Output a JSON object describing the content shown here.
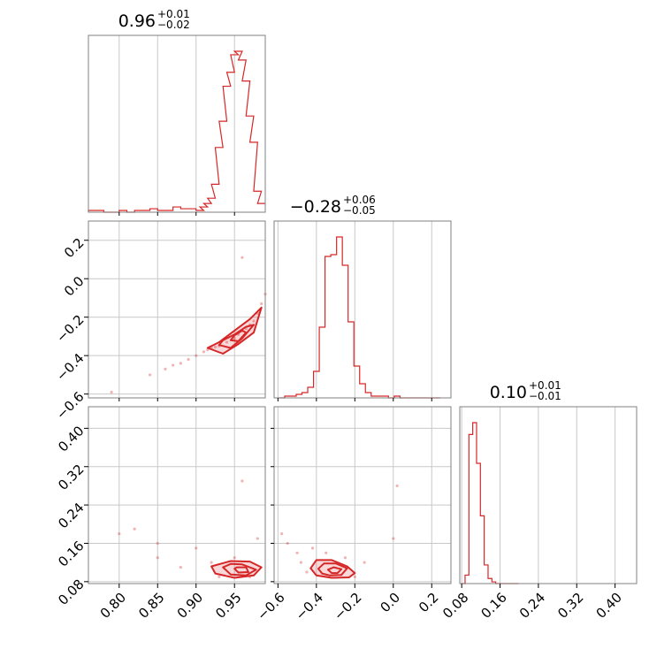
{
  "chart_data": {
    "type": "scatter",
    "subtype": "corner-plot",
    "color": "#d62728",
    "grid": true,
    "parameters": [
      {
        "title": {
          "value": "0.96",
          "plus": "+0.01",
          "minus": "−0.02"
        },
        "range": [
          0.76,
          0.99
        ],
        "ticks": [
          0.8,
          0.85,
          0.9,
          0.95
        ],
        "tick_labels": [
          "0.80",
          "0.85",
          "0.90",
          "0.95"
        ],
        "hist_x": [
          0.765,
          0.775,
          0.785,
          0.795,
          0.805,
          0.815,
          0.825,
          0.835,
          0.845,
          0.855,
          0.865,
          0.875,
          0.885,
          0.895,
          0.905,
          0.91,
          0.915,
          0.92,
          0.925,
          0.93,
          0.935,
          0.94,
          0.945,
          0.95,
          0.955,
          0.96,
          0.965,
          0.97,
          0.975,
          0.98,
          0.985
        ],
        "hist_y": [
          1,
          1,
          0,
          0,
          1,
          0,
          1,
          1,
          2,
          1,
          1,
          3,
          2,
          2,
          1,
          3,
          5,
          8,
          16,
          37,
          52,
          72,
          80,
          90,
          92,
          87,
          75,
          55,
          40,
          12,
          5
        ]
      },
      {
        "title": {
          "value": "−0.28",
          "plus": "+0.06",
          "minus": "−0.05"
        },
        "range": [
          -0.62,
          0.3
        ],
        "ticks": [
          -0.6,
          -0.4,
          -0.2,
          0.0,
          0.2
        ],
        "tick_labels": [
          "−0.6",
          "−0.4",
          "−0.2",
          "0.0",
          "0.2"
        ],
        "hist_x": [
          -0.58,
          -0.55,
          -0.52,
          -0.49,
          -0.46,
          -0.43,
          -0.4,
          -0.37,
          -0.34,
          -0.31,
          -0.28,
          -0.25,
          -0.22,
          -0.19,
          -0.16,
          -0.13,
          -0.1,
          -0.07,
          -0.04,
          -0.01,
          0.02,
          0.05,
          0.08,
          0.11,
          0.14,
          0.17,
          0.2,
          0.23
        ],
        "hist_y": [
          0,
          1,
          1,
          2,
          3,
          6,
          15,
          40,
          80,
          81,
          91,
          75,
          43,
          18,
          8,
          3,
          1,
          1,
          1,
          0,
          1,
          0,
          0,
          0,
          0,
          0,
          0,
          0
        ]
      },
      {
        "title": {
          "value": "0.10",
          "plus": "+0.01",
          "minus": "−0.01"
        },
        "range": [
          0.076,
          0.445
        ],
        "ticks": [
          0.08,
          0.16,
          0.24,
          0.32,
          0.4
        ],
        "tick_labels": [
          "0.08",
          "0.16",
          "0.24",
          "0.32",
          "0.40"
        ],
        "hist_x": [
          0.083,
          0.091,
          0.099,
          0.107,
          0.115,
          0.123,
          0.131,
          0.139,
          0.147,
          0.155,
          0.163,
          0.171,
          0.179,
          0.187,
          0.195
        ],
        "hist_y": [
          0,
          5,
          88,
          95,
          71,
          40,
          11,
          3,
          1,
          0,
          0,
          0,
          0,
          0,
          0
        ]
      }
    ],
    "pairs": [
      {
        "x_param": 0,
        "y_param": 1,
        "points": [
          [
            0.79,
            -0.59
          ],
          [
            0.84,
            -0.5
          ],
          [
            0.86,
            -0.47
          ],
          [
            0.87,
            -0.45
          ],
          [
            0.88,
            -0.44
          ],
          [
            0.89,
            -0.42
          ],
          [
            0.9,
            -0.4
          ],
          [
            0.91,
            -0.38
          ],
          [
            0.915,
            -0.37
          ],
          [
            0.92,
            -0.36
          ],
          [
            0.925,
            -0.355
          ],
          [
            0.93,
            -0.35
          ],
          [
            0.94,
            -0.33
          ],
          [
            0.95,
            -0.31
          ],
          [
            0.955,
            -0.29
          ],
          [
            0.96,
            -0.27
          ],
          [
            0.965,
            -0.26
          ],
          [
            0.97,
            -0.24
          ],
          [
            0.975,
            -0.22
          ],
          [
            0.98,
            -0.18
          ],
          [
            0.985,
            -0.13
          ],
          [
            0.99,
            -0.08
          ],
          [
            0.96,
            0.11
          ]
        ],
        "contours": [
          [
            [
              0.915,
              -0.36
            ],
            [
              0.935,
              -0.39
            ],
            [
              0.955,
              -0.34
            ],
            [
              0.975,
              -0.28
            ],
            [
              0.985,
              -0.15
            ],
            [
              0.97,
              -0.21
            ],
            [
              0.95,
              -0.27
            ],
            [
              0.93,
              -0.33
            ]
          ],
          [
            [
              0.93,
              -0.345
            ],
            [
              0.945,
              -0.36
            ],
            [
              0.96,
              -0.31
            ],
            [
              0.975,
              -0.24
            ],
            [
              0.965,
              -0.25
            ],
            [
              0.95,
              -0.29
            ],
            [
              0.935,
              -0.32
            ]
          ],
          [
            [
              0.945,
              -0.32
            ],
            [
              0.955,
              -0.325
            ],
            [
              0.965,
              -0.28
            ],
            [
              0.96,
              -0.27
            ],
            [
              0.95,
              -0.295
            ]
          ]
        ]
      },
      {
        "x_param": 0,
        "y_param": 2,
        "points": [
          [
            0.8,
            0.18
          ],
          [
            0.82,
            0.19
          ],
          [
            0.85,
            0.16
          ],
          [
            0.85,
            0.13
          ],
          [
            0.88,
            0.11
          ],
          [
            0.9,
            0.15
          ],
          [
            0.92,
            0.12
          ],
          [
            0.93,
            0.09
          ],
          [
            0.96,
            0.29
          ],
          [
            0.98,
            0.17
          ],
          [
            0.95,
            0.13
          ],
          [
            0.97,
            0.09
          ]
        ],
        "contours": [
          [
            [
              0.92,
              0.112
            ],
            [
              0.925,
              0.097
            ],
            [
              0.95,
              0.088
            ],
            [
              0.975,
              0.093
            ],
            [
              0.985,
              0.11
            ],
            [
              0.97,
              0.122
            ],
            [
              0.945,
              0.123
            ]
          ],
          [
            [
              0.935,
              0.11
            ],
            [
              0.945,
              0.095
            ],
            [
              0.965,
              0.093
            ],
            [
              0.978,
              0.105
            ],
            [
              0.96,
              0.116
            ],
            [
              0.945,
              0.117
            ]
          ],
          [
            [
              0.95,
              0.107
            ],
            [
              0.955,
              0.099
            ],
            [
              0.968,
              0.1
            ],
            [
              0.965,
              0.11
            ],
            [
              0.953,
              0.11
            ]
          ]
        ]
      },
      {
        "x_param": 1,
        "y_param": 2,
        "points": [
          [
            -0.58,
            0.18
          ],
          [
            -0.55,
            0.16
          ],
          [
            -0.5,
            0.14
          ],
          [
            -0.48,
            0.12
          ],
          [
            -0.45,
            0.1
          ],
          [
            -0.42,
            0.15
          ],
          [
            -0.35,
            0.14
          ],
          [
            -0.25,
            0.13
          ],
          [
            -0.2,
            0.09
          ],
          [
            -0.15,
            0.12
          ],
          [
            0.0,
            0.17
          ],
          [
            0.02,
            0.28
          ]
        ],
        "contours": [
          [
            [
              -0.43,
              0.108
            ],
            [
              -0.4,
              0.125
            ],
            [
              -0.32,
              0.125
            ],
            [
              -0.24,
              0.112
            ],
            [
              -0.2,
              0.098
            ],
            [
              -0.23,
              0.089
            ],
            [
              -0.32,
              0.088
            ],
            [
              -0.4,
              0.093
            ]
          ],
          [
            [
              -0.39,
              0.107
            ],
            [
              -0.36,
              0.118
            ],
            [
              -0.3,
              0.118
            ],
            [
              -0.24,
              0.108
            ],
            [
              -0.27,
              0.094
            ],
            [
              -0.33,
              0.093
            ],
            [
              -0.37,
              0.097
            ]
          ],
          [
            [
              -0.34,
              0.105
            ],
            [
              -0.31,
              0.11
            ],
            [
              -0.27,
              0.106
            ],
            [
              -0.29,
              0.098
            ],
            [
              -0.32,
              0.098
            ]
          ]
        ]
      }
    ]
  }
}
